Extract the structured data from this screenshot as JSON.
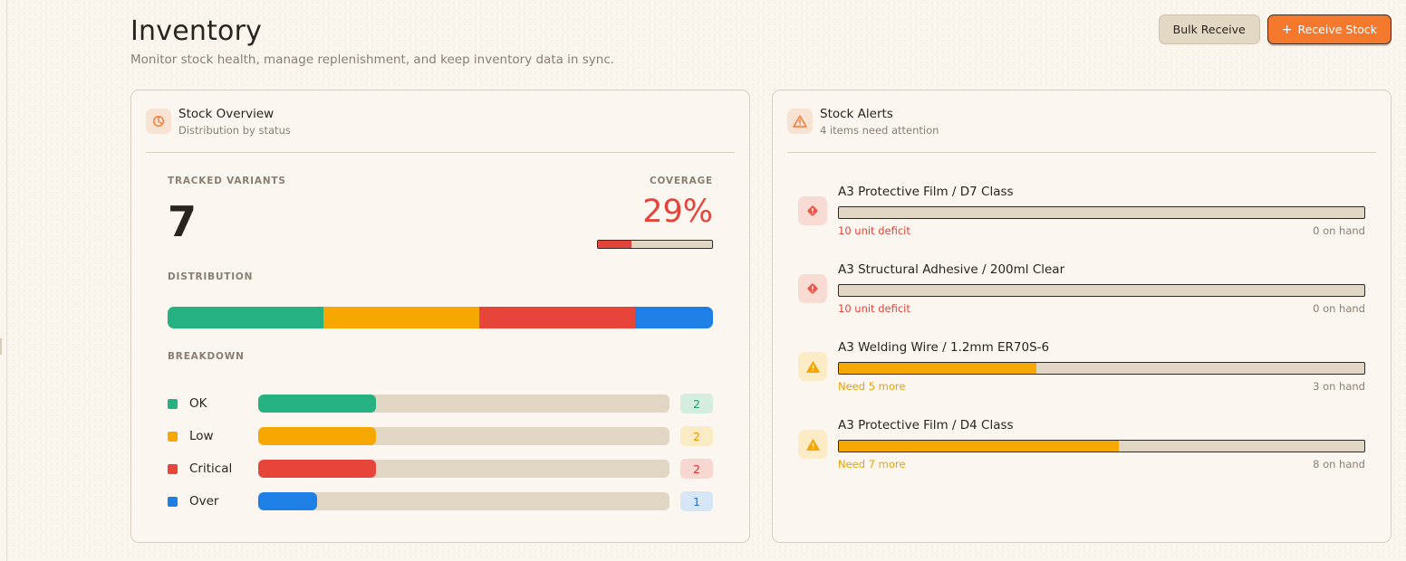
{
  "header": {
    "title": "Inventory",
    "subtitle": "Monitor stock health, manage replenishment, and keep inventory data in sync."
  },
  "actions": {
    "bulk_receive": "Bulk Receive",
    "receive_stock": "Receive Stock",
    "receive_icon": "plus-icon"
  },
  "overview": {
    "title": "Stock Overview",
    "subtitle": "Distribution by status",
    "icon": "pie-chart-icon",
    "tracked_label": "TRACKED VARIANTS",
    "tracked_value": "7",
    "coverage_label": "COVERAGE",
    "coverage_value": "29%",
    "coverage_fraction": 0.29,
    "distribution_label": "DISTRIBUTION",
    "breakdown_label": "BREAKDOWN",
    "breakdown": [
      {
        "label": "OK",
        "count": "2",
        "value": 2,
        "color": "#26b182",
        "badge_bg": "#d5eddf",
        "badge_fg": "#1f9a6e"
      },
      {
        "label": "Low",
        "count": "2",
        "value": 2,
        "color": "#f7a800",
        "badge_bg": "#fbebc4",
        "badge_fg": "#e09400"
      },
      {
        "label": "Critical",
        "count": "2",
        "value": 2,
        "color": "#e8453a",
        "badge_bg": "#f7d7cf",
        "badge_fg": "#d8392f"
      },
      {
        "label": "Over",
        "count": "1",
        "value": 1,
        "color": "#1e80e6",
        "badge_bg": "#d6e6f6",
        "badge_fg": "#1e73d0"
      }
    ],
    "breakdown_max": 7
  },
  "alerts": {
    "title": "Stock Alerts",
    "subtitle": "4 items need attention",
    "icon": "warning-triangle-icon",
    "items": [
      {
        "name": "A3 Protective Film / D7 Class",
        "status": "10 unit deficit",
        "on_hand": "0 on hand",
        "level": "critical",
        "fill": 0
      },
      {
        "name": "A3 Structural Adhesive / 200ml Clear",
        "status": "10 unit deficit",
        "on_hand": "0 on hand",
        "level": "critical",
        "fill": 0
      },
      {
        "name": "A3 Welding Wire / 1.2mm ER70S-6",
        "status": "Need 5 more",
        "on_hand": "3 on hand",
        "level": "low",
        "fill": 0.375
      },
      {
        "name": "A3 Protective Film / D4 Class",
        "status": "Need 7 more",
        "on_hand": "8 on hand",
        "level": "low",
        "fill": 0.533
      }
    ],
    "colors": {
      "critical_text": "#e4443a",
      "critical_icon_bg": "#f8dcd3",
      "critical_icon": "#e8574a",
      "low_text": "#f0a000",
      "low_icon_bg": "#fbecc6",
      "low_icon": "#f5a400"
    }
  }
}
